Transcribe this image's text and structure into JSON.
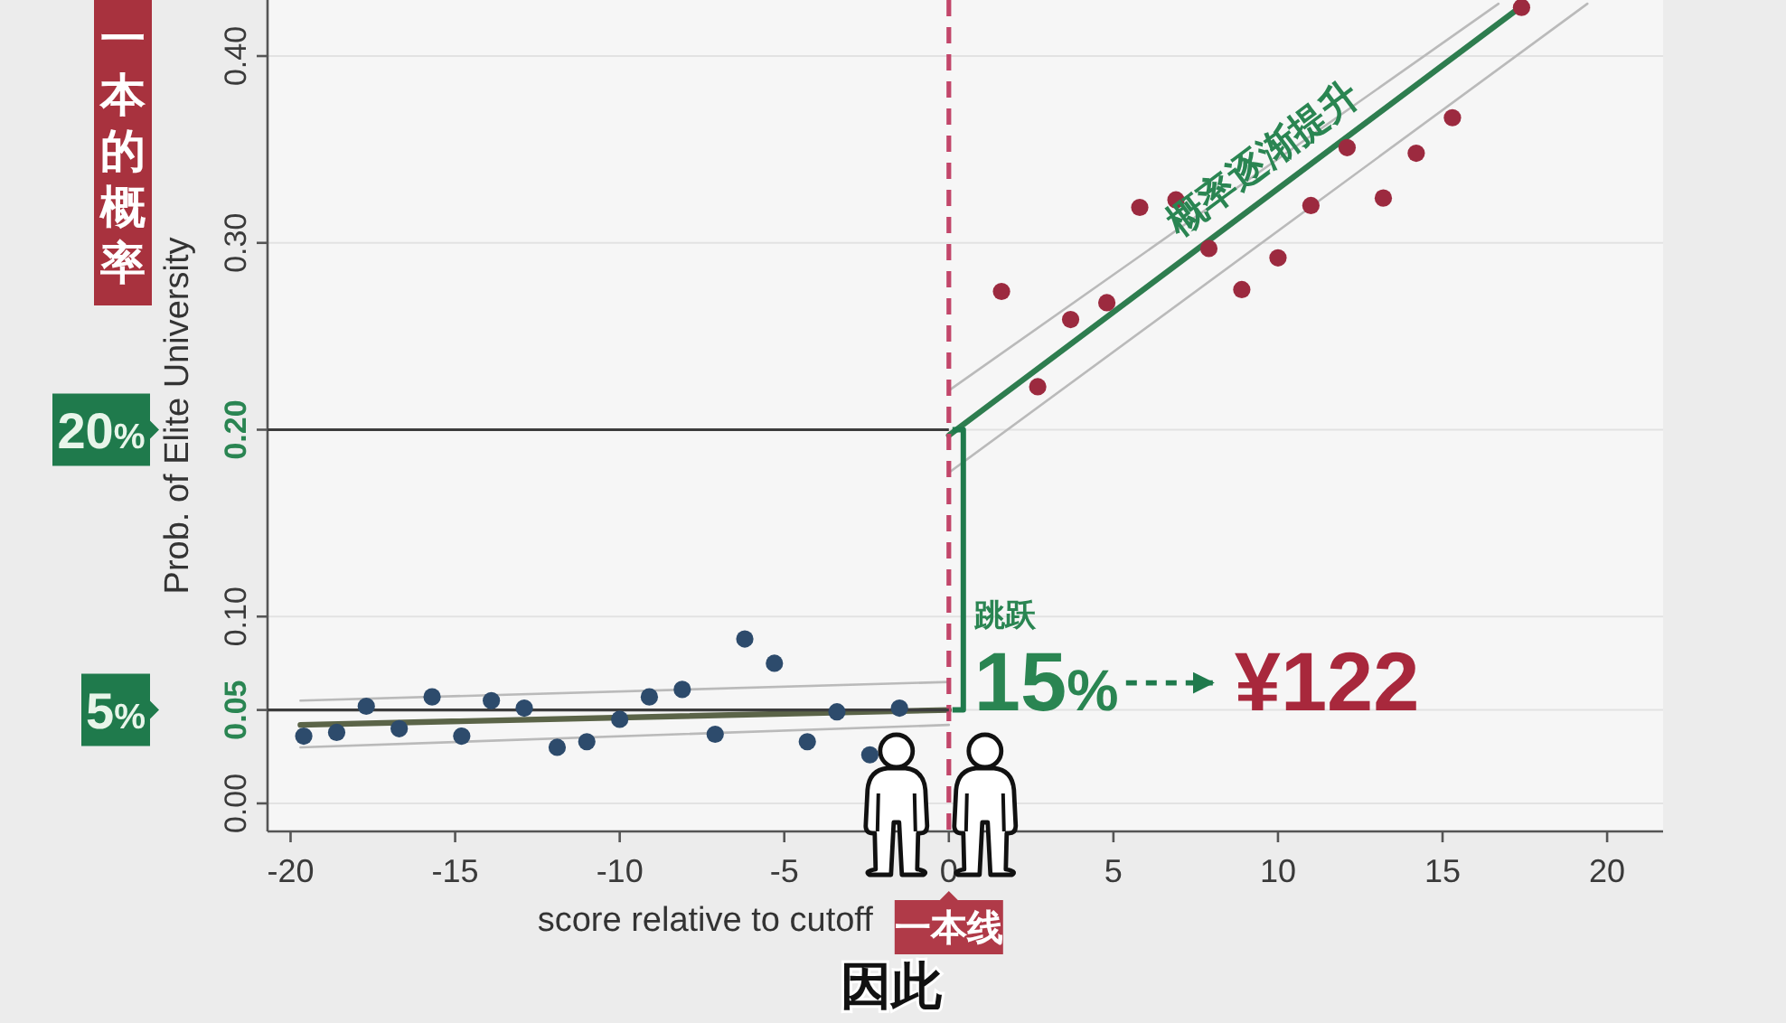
{
  "chart_data": {
    "type": "scatter",
    "xlabel": "score relative to cutoff",
    "ylabel": "Prob. of Elite University",
    "xlim": [
      -20.7,
      21.7
    ],
    "xticks": [
      -20,
      -15,
      -10,
      -5,
      0,
      5,
      10,
      15,
      20
    ],
    "ylim": [
      -0.015,
      0.43
    ],
    "yticks": [
      {
        "value": 0,
        "label": "0.00"
      },
      {
        "value": 0.05,
        "label": "0.05"
      },
      {
        "value": 0.1,
        "label": "0.10"
      },
      {
        "value": 0.2,
        "label": "0.20"
      },
      {
        "value": 0.3,
        "label": "0.30"
      },
      {
        "value": 0.4,
        "label": "0.40"
      }
    ],
    "grid": "y",
    "series": [
      {
        "marker": "circle",
        "color": "#2d4b6c",
        "x": [
          -19.6,
          -18.6,
          -17.7,
          -16.7,
          -15.7,
          -14.8,
          -13.9,
          -12.9,
          -11.9,
          -11.0,
          -10.0,
          -9.1,
          -8.1,
          -7.1,
          -6.2,
          -5.3,
          -4.3,
          -3.4,
          -2.4,
          -1.5
        ],
        "values": [
          0.036,
          0.038,
          0.052,
          0.04,
          0.057,
          0.036,
          0.055,
          0.051,
          0.03,
          0.033,
          0.045,
          0.057,
          0.061,
          0.037,
          0.088,
          0.075,
          0.033,
          0.049,
          0.026,
          0.051
        ]
      },
      {
        "marker": "circle",
        "color": "#9c2a3f",
        "x": [
          1.6,
          2.7,
          3.7,
          4.8,
          5.8,
          6.9,
          7.9,
          8.9,
          10.0,
          11.0,
          12.1,
          13.2,
          14.2,
          15.3,
          17.4
        ],
        "values": [
          0.274,
          0.223,
          0.259,
          0.268,
          0.319,
          0.323,
          0.297,
          0.275,
          0.292,
          0.32,
          0.351,
          0.324,
          0.348,
          0.367,
          0.426
        ]
      },
      {
        "type": "line",
        "color": "#bababa",
        "x": [
          -19.7,
          0
        ],
        "values": [
          0.055,
          0.065
        ]
      },
      {
        "type": "line",
        "color": "#bababa",
        "x": [
          -19.7,
          0
        ],
        "values": [
          0.03,
          0.042
        ]
      },
      {
        "type": "line",
        "color": "#5b6448",
        "x": [
          -19.7,
          0
        ],
        "values": [
          0.042,
          0.05
        ]
      },
      {
        "type": "line",
        "color": "#bababa",
        "x": [
          0,
          16.7
        ],
        "values": [
          0.221,
          0.428
        ]
      },
      {
        "type": "line",
        "color": "#bababa",
        "x": [
          0,
          19.4
        ],
        "values": [
          0.177,
          0.428
        ]
      },
      {
        "type": "line",
        "color": "#2e7d4f",
        "x": [
          0,
          17.5
        ],
        "values": [
          0.197,
          0.428
        ]
      }
    ],
    "ref_lines": [
      {
        "axis": "x",
        "value": 0,
        "label": "一本线",
        "color": "#c2466a",
        "line_style": "dashed"
      },
      {
        "axis": "y",
        "value": 0.2,
        "label": "20%",
        "color": "#3c3c3c"
      },
      {
        "axis": "y",
        "value": 0.05,
        "label": "5%",
        "color": "#3c3c3c"
      }
    ],
    "annotations": [
      "一本的概率",
      "概率逐渐提升",
      "跳跃",
      {
        "text": "15%",
        "x": 0,
        "y": 0.2
      },
      "¥122",
      "因此"
    ]
  }
}
